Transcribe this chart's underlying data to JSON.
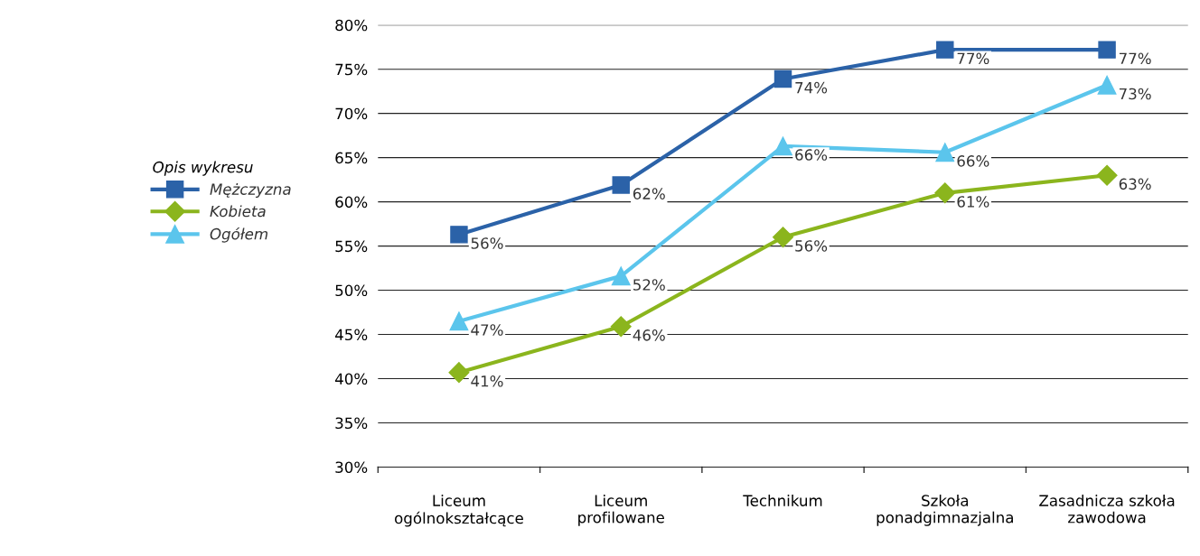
{
  "chart_data": {
    "type": "line",
    "categories": [
      "Liceum\nogólnokształcące",
      "Liceum\nprofilowane",
      "Technikum",
      "Szkoła\nponadgimnazjalna",
      "Zasadnicza szkoła\nzawodowa"
    ],
    "legend_title": "Opis wykresu",
    "legend": "left",
    "grid": "y",
    "ylim": [
      30,
      80
    ],
    "yticks": [
      {
        "value": 30,
        "label": "30%"
      },
      {
        "value": 35,
        "label": "35%"
      },
      {
        "value": 40,
        "label": "40%"
      },
      {
        "value": 45,
        "label": "45%"
      },
      {
        "value": 50,
        "label": "50%"
      },
      {
        "value": 55,
        "label": "55%"
      },
      {
        "value": 60,
        "label": "60%"
      },
      {
        "value": 65,
        "label": "65%"
      },
      {
        "value": 70,
        "label": "70%"
      },
      {
        "value": 75,
        "label": "75%"
      },
      {
        "value": 80,
        "label": "80%"
      }
    ],
    "series": [
      {
        "name": "Mężczyzna",
        "color": "#2b62a8",
        "marker": "square",
        "values": [
          56.3,
          61.9,
          73.9,
          77.2,
          77.2
        ],
        "value_labels": [
          "56%",
          "62%",
          "74%",
          "77%",
          "77%"
        ]
      },
      {
        "name": "Kobieta",
        "color": "#8bb51d",
        "marker": "diamond",
        "values": [
          40.7,
          45.9,
          56.0,
          61.0,
          63.0
        ],
        "value_labels": [
          "41%",
          "46%",
          "56%",
          "61%",
          "63%"
        ]
      },
      {
        "name": "Ogółem",
        "color": "#5bc5ec",
        "marker": "triangle",
        "values": [
          46.5,
          51.6,
          66.3,
          65.6,
          73.2
        ],
        "value_labels": [
          "47%",
          "52%",
          "66%",
          "66%",
          "73%"
        ]
      }
    ]
  }
}
